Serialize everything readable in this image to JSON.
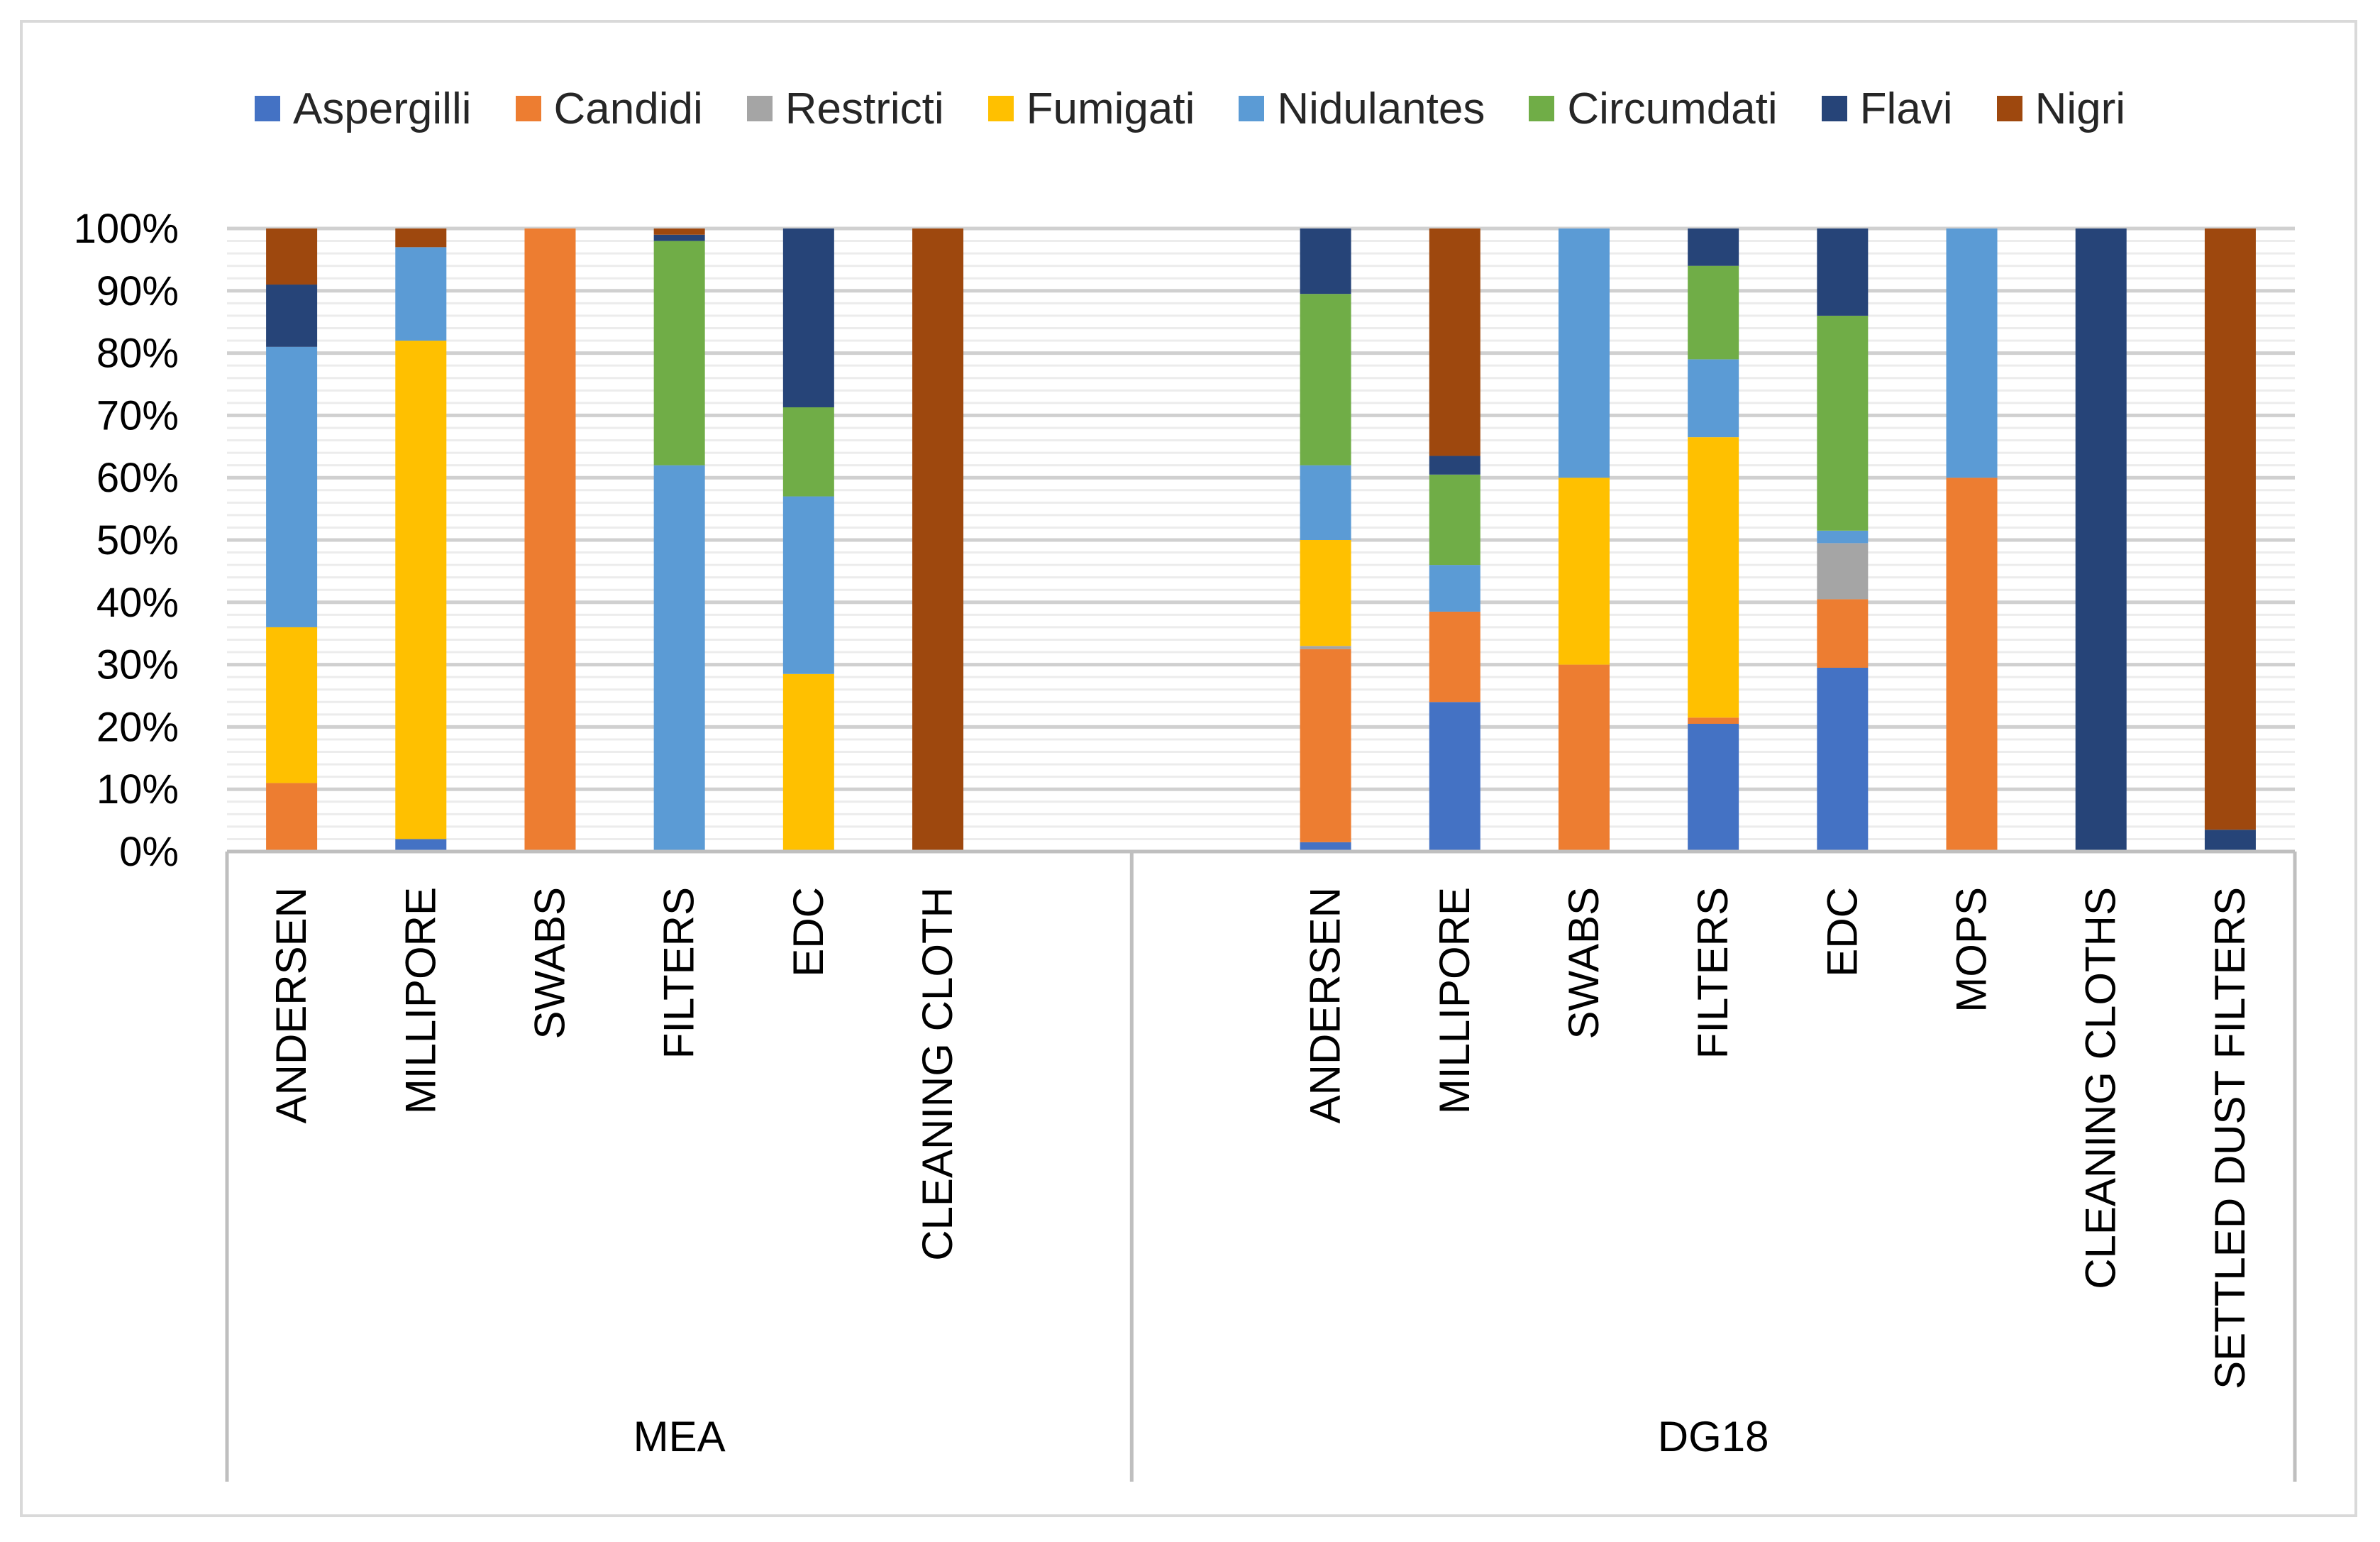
{
  "chart_data": {
    "type": "bar",
    "stacked": "percent",
    "title": "",
    "xlabel": "",
    "ylabel": "",
    "ylim": [
      0,
      100
    ],
    "yticks": [
      "0%",
      "10%",
      "20%",
      "30%",
      "40%",
      "50%",
      "60%",
      "70%",
      "80%",
      "90%",
      "100%"
    ],
    "legend_position": "top",
    "grid": true,
    "series": [
      {
        "name": "Aspergilli",
        "color": "#4472C4"
      },
      {
        "name": "Candidi",
        "color": "#ED7D31"
      },
      {
        "name": "Restricti",
        "color": "#A5A5A5"
      },
      {
        "name": "Fumigati",
        "color": "#FFC000"
      },
      {
        "name": "Nidulantes",
        "color": "#5B9BD5"
      },
      {
        "name": "Circumdati",
        "color": "#70AD47"
      },
      {
        "name": "Flavi",
        "color": "#264478"
      },
      {
        "name": "Nigri",
        "color": "#9E480E"
      }
    ],
    "groups": [
      {
        "name": "MEA",
        "categories": [
          {
            "label": "ANDERSEN",
            "values": [
              0,
              11,
              0,
              25,
              45,
              0,
              10,
              9
            ]
          },
          {
            "label": "MILLIPORE",
            "values": [
              2,
              0,
              0,
              80,
              15,
              0,
              0,
              3
            ]
          },
          {
            "label": "SWABS",
            "values": [
              0,
              100,
              0,
              0,
              0,
              0,
              0,
              0
            ]
          },
          {
            "label": "FILTERS",
            "values": [
              0,
              0,
              0,
              0,
              62,
              36,
              1,
              1
            ]
          },
          {
            "label": "EDC",
            "values": [
              0,
              0,
              0,
              28.5,
              28.5,
              14.3,
              28.7,
              0
            ]
          },
          {
            "label": "CLEANING CLOTH",
            "values": [
              0,
              0,
              0,
              0,
              0,
              0,
              0,
              100
            ]
          },
          {
            "label": "",
            "values": [
              0,
              0,
              0,
              0,
              0,
              0,
              0,
              0
            ]
          }
        ]
      },
      {
        "name": "DG18",
        "categories": [
          {
            "label": "",
            "values": [
              0,
              0,
              0,
              0,
              0,
              0,
              0,
              0
            ]
          },
          {
            "label": "ANDERSEN",
            "values": [
              1.5,
              31,
              0.5,
              17,
              12,
              27.5,
              10.5,
              0
            ]
          },
          {
            "label": "MILLIPORE",
            "values": [
              24,
              14.5,
              0,
              0,
              7.5,
              14.5,
              3,
              36.5
            ]
          },
          {
            "label": "SWABS",
            "values": [
              0,
              30,
              0,
              30,
              40,
              0,
              0,
              0
            ]
          },
          {
            "label": "FILTERS",
            "values": [
              20.5,
              1,
              0,
              45,
              12.5,
              15,
              6,
              0
            ]
          },
          {
            "label": "EDC",
            "values": [
              29.5,
              11,
              9,
              0,
              2,
              34.5,
              14,
              0
            ]
          },
          {
            "label": "MOPS",
            "values": [
              0,
              60,
              0,
              0,
              40,
              0,
              0,
              0
            ]
          },
          {
            "label": "CLEANING CLOTHS",
            "values": [
              0,
              0,
              0,
              0,
              0,
              0,
              100,
              0
            ]
          },
          {
            "label": "SETTLED DUST FILTERS",
            "values": [
              0,
              0,
              0,
              0,
              0,
              0,
              3.5,
              96.5
            ]
          }
        ]
      }
    ]
  }
}
